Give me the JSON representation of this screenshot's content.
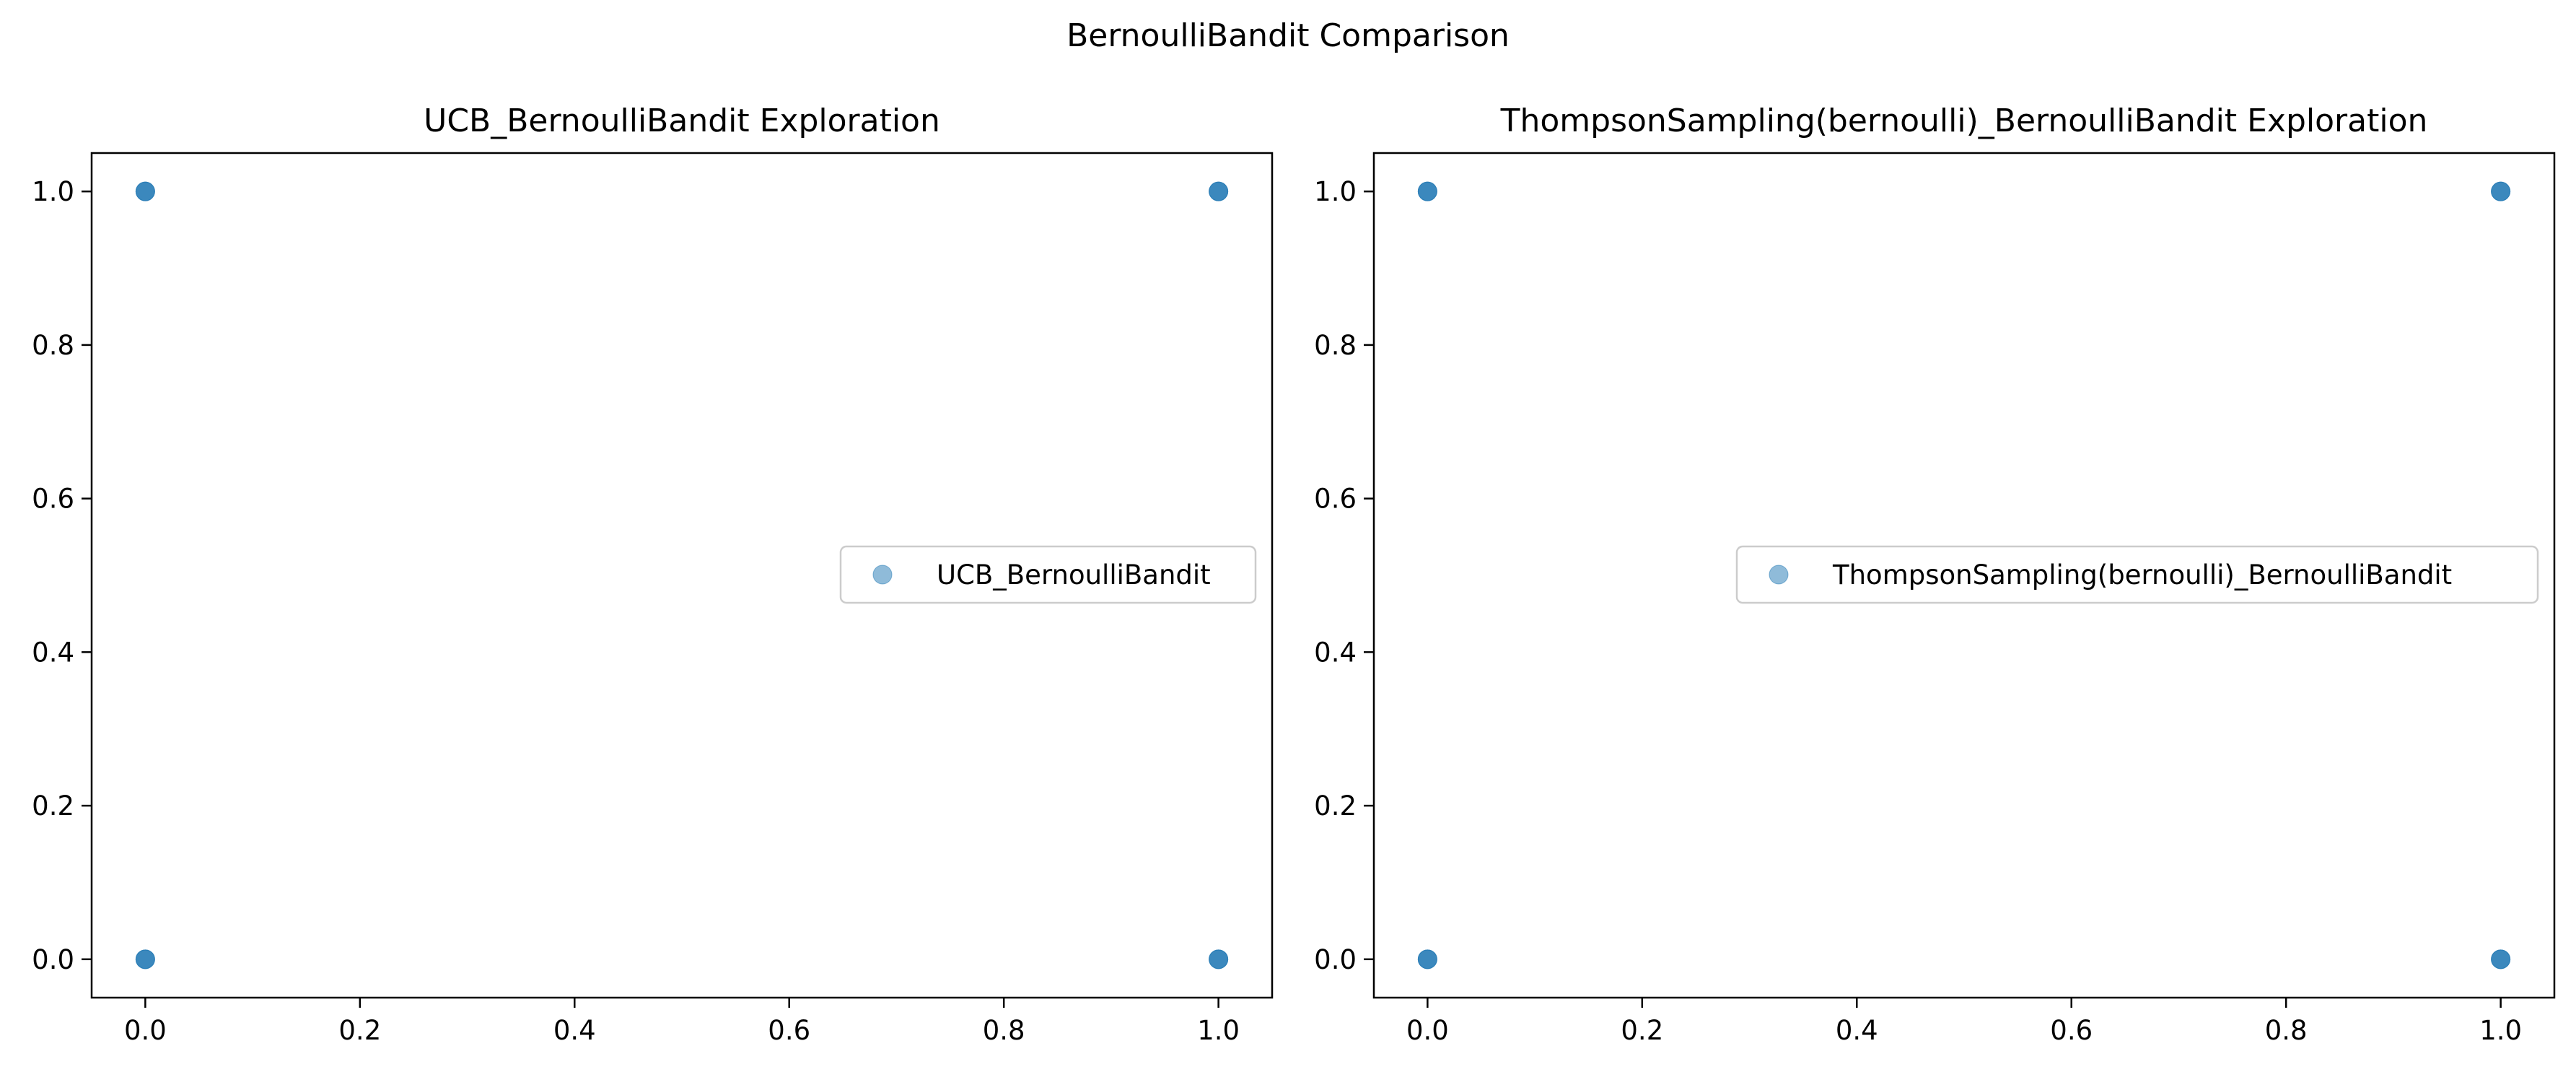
{
  "figure_title": "BernoulliBandit Comparison",
  "colors": {
    "marker": "#1f77b4",
    "axis": "#000000",
    "legend_border": "#cccccc",
    "background": "#ffffff"
  },
  "chart_data": [
    {
      "type": "scatter",
      "title": "UCB_BernoulliBandit Exploration",
      "xlabel": "",
      "ylabel": "",
      "xlim": [
        -0.05,
        1.05
      ],
      "ylim": [
        -0.05,
        1.05
      ],
      "xticks": [
        0.0,
        0.2,
        0.4,
        0.6,
        0.8,
        1.0
      ],
      "yticks": [
        0.0,
        0.2,
        0.4,
        0.6,
        0.8,
        1.0
      ],
      "xtick_labels": [
        "0.0",
        "0.2",
        "0.4",
        "0.6",
        "0.8",
        "1.0"
      ],
      "ytick_labels": [
        "0.0",
        "0.2",
        "0.4",
        "0.6",
        "0.8",
        "1.0"
      ],
      "grid": false,
      "legend": {
        "position": "center-right",
        "entries": [
          "UCB_BernoulliBandit"
        ]
      },
      "series": [
        {
          "name": "UCB_BernoulliBandit",
          "alpha": 0.5,
          "points": [
            {
              "x": 0,
              "y": 0
            },
            {
              "x": 0,
              "y": 0
            },
            {
              "x": 0,
              "y": 0
            },
            {
              "x": 0,
              "y": 1
            },
            {
              "x": 0,
              "y": 1
            },
            {
              "x": 0,
              "y": 1
            },
            {
              "x": 1,
              "y": 0
            },
            {
              "x": 1,
              "y": 0
            },
            {
              "x": 1,
              "y": 0
            },
            {
              "x": 1,
              "y": 1
            },
            {
              "x": 1,
              "y": 1
            },
            {
              "x": 1,
              "y": 1
            }
          ]
        }
      ]
    },
    {
      "type": "scatter",
      "title": "ThompsonSampling(bernoulli)_BernoulliBandit Exploration",
      "xlabel": "",
      "ylabel": "",
      "xlim": [
        -0.05,
        1.05
      ],
      "ylim": [
        -0.05,
        1.05
      ],
      "xticks": [
        0.0,
        0.2,
        0.4,
        0.6,
        0.8,
        1.0
      ],
      "yticks": [
        0.0,
        0.2,
        0.4,
        0.6,
        0.8,
        1.0
      ],
      "xtick_labels": [
        "0.0",
        "0.2",
        "0.4",
        "0.6",
        "0.8",
        "1.0"
      ],
      "ytick_labels": [
        "0.0",
        "0.2",
        "0.4",
        "0.6",
        "0.8",
        "1.0"
      ],
      "grid": false,
      "legend": {
        "position": "center-right",
        "entries": [
          "ThompsonSampling(bernoulli)_BernoulliBandit"
        ]
      },
      "series": [
        {
          "name": "ThompsonSampling(bernoulli)_BernoulliBandit",
          "alpha": 0.5,
          "points": [
            {
              "x": 0,
              "y": 0
            },
            {
              "x": 0,
              "y": 0
            },
            {
              "x": 0,
              "y": 0
            },
            {
              "x": 0,
              "y": 1
            },
            {
              "x": 0,
              "y": 1
            },
            {
              "x": 0,
              "y": 1
            },
            {
              "x": 1,
              "y": 0
            },
            {
              "x": 1,
              "y": 0
            },
            {
              "x": 1,
              "y": 0
            },
            {
              "x": 1,
              "y": 1
            },
            {
              "x": 1,
              "y": 1
            },
            {
              "x": 1,
              "y": 1
            }
          ]
        }
      ]
    }
  ]
}
